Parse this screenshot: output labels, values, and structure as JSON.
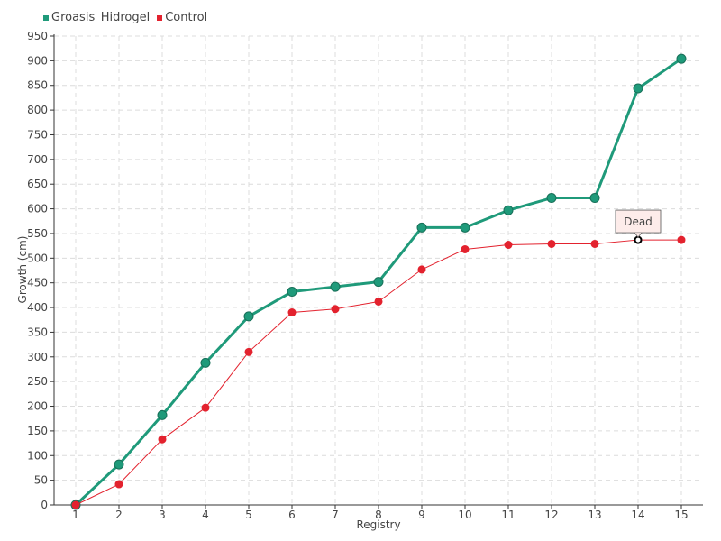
{
  "chart_data": {
    "type": "line",
    "xlabel": "Registry",
    "ylabel": "Growth (cm)",
    "categories": [
      1,
      2,
      3,
      4,
      5,
      6,
      7,
      8,
      9,
      10,
      11,
      12,
      13,
      14,
      15
    ],
    "ylim": [
      0,
      950
    ],
    "yticks": [
      0,
      50,
      100,
      150,
      200,
      250,
      300,
      350,
      400,
      450,
      500,
      550,
      600,
      650,
      700,
      750,
      800,
      850,
      900,
      950
    ],
    "grid": true,
    "legend_position": "top-left",
    "series": [
      {
        "name": "Groasis_Hidrogel",
        "color": "#1f9a7a",
        "values": [
          0,
          82,
          182,
          288,
          382,
          432,
          442,
          452,
          562,
          562,
          597,
          622,
          622,
          844,
          904
        ]
      },
      {
        "name": "Control",
        "color": "#e3222e",
        "values": [
          0,
          42,
          133,
          197,
          310,
          390,
          397,
          412,
          477,
          518,
          527,
          529,
          529,
          537,
          537
        ]
      }
    ],
    "annotations": [
      {
        "series": "Control",
        "x": 14,
        "y": 537,
        "text": "Dead"
      }
    ]
  }
}
